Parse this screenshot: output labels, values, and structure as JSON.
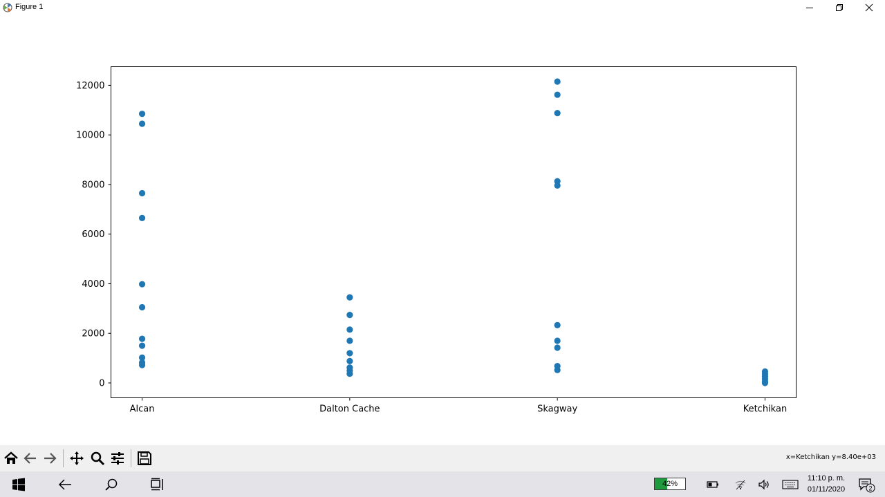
{
  "window": {
    "title": "Figure 1",
    "controls": [
      "minimize",
      "restore",
      "close"
    ]
  },
  "chart_data": {
    "type": "scatter",
    "title": "",
    "xlabel": "",
    "ylabel": "",
    "categories": [
      "Alcan",
      "Dalton Cache",
      "Skagway",
      "Ketchikan"
    ],
    "ylim": [
      -600,
      12750
    ],
    "yticks": [
      "0",
      "2000",
      "4000",
      "6000",
      "8000",
      "10000",
      "12000"
    ],
    "grid": false,
    "color": "#1f77b4",
    "points": [
      {
        "x": "Alcan",
        "y": 10850
      },
      {
        "x": "Alcan",
        "y": 10450
      },
      {
        "x": "Alcan",
        "y": 7650
      },
      {
        "x": "Alcan",
        "y": 6650
      },
      {
        "x": "Alcan",
        "y": 3980
      },
      {
        "x": "Alcan",
        "y": 3050
      },
      {
        "x": "Alcan",
        "y": 1780
      },
      {
        "x": "Alcan",
        "y": 1500
      },
      {
        "x": "Alcan",
        "y": 1020
      },
      {
        "x": "Alcan",
        "y": 820
      },
      {
        "x": "Alcan",
        "y": 720
      },
      {
        "x": "Dalton Cache",
        "y": 3450
      },
      {
        "x": "Dalton Cache",
        "y": 2740
      },
      {
        "x": "Dalton Cache",
        "y": 2150
      },
      {
        "x": "Dalton Cache",
        "y": 1700
      },
      {
        "x": "Dalton Cache",
        "y": 1200
      },
      {
        "x": "Dalton Cache",
        "y": 880
      },
      {
        "x": "Dalton Cache",
        "y": 620
      },
      {
        "x": "Dalton Cache",
        "y": 500
      },
      {
        "x": "Dalton Cache",
        "y": 370
      },
      {
        "x": "Skagway",
        "y": 12150
      },
      {
        "x": "Skagway",
        "y": 11620
      },
      {
        "x": "Skagway",
        "y": 10880
      },
      {
        "x": "Skagway",
        "y": 8130
      },
      {
        "x": "Skagway",
        "y": 7960
      },
      {
        "x": "Skagway",
        "y": 2330
      },
      {
        "x": "Skagway",
        "y": 1700
      },
      {
        "x": "Skagway",
        "y": 1420
      },
      {
        "x": "Skagway",
        "y": 680
      },
      {
        "x": "Skagway",
        "y": 520
      },
      {
        "x": "Ketchikan",
        "y": 460
      },
      {
        "x": "Ketchikan",
        "y": 360
      },
      {
        "x": "Ketchikan",
        "y": 260
      },
      {
        "x": "Ketchikan",
        "y": 160
      },
      {
        "x": "Ketchikan",
        "y": 60
      },
      {
        "x": "Ketchikan",
        "y": 0
      }
    ]
  },
  "toolbar": {
    "buttons": [
      "home-icon",
      "back-arrow-icon",
      "forward-arrow-icon",
      "pan-icon",
      "zoom-icon",
      "configure-subplots-icon",
      "save-icon"
    ],
    "coordinates": "x=Ketchikan y=8.40e+03"
  },
  "taskbar": {
    "battery_percent": "42%",
    "battery_level": 0.42,
    "time": "11:10 p. m.",
    "date": "01/11/2020",
    "notification_count": "2"
  }
}
